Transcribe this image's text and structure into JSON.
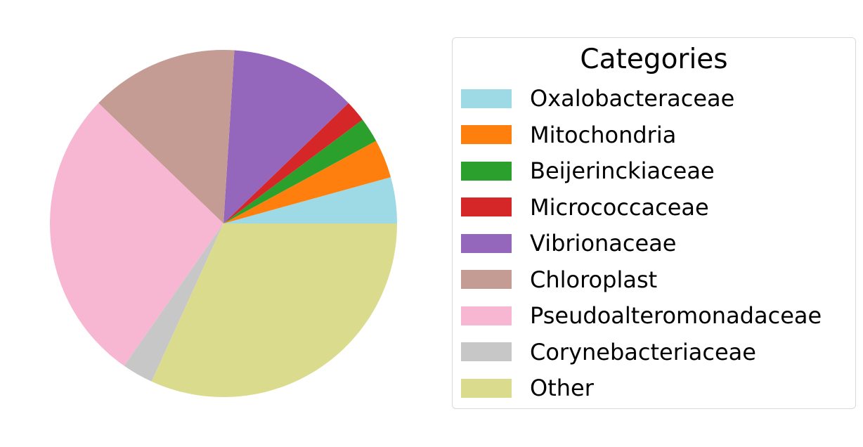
{
  "chart_data": {
    "type": "pie",
    "title": "",
    "start_angle_deg": 0,
    "direction": "counterclockwise",
    "slices": [
      {
        "label": "Oxalobacteraceae",
        "value": 4.3,
        "color": "#9edae5"
      },
      {
        "label": "Mitochondria",
        "value": 3.6,
        "color": "#ff7f0e"
      },
      {
        "label": "Beijerinckiaceae",
        "value": 2.3,
        "color": "#2ca02c"
      },
      {
        "label": "Micrococcaceae",
        "value": 2.0,
        "color": "#d62728"
      },
      {
        "label": "Vibrionaceae",
        "value": 11.8,
        "color": "#9467bd"
      },
      {
        "label": "Chloroplast",
        "value": 13.8,
        "color": "#c49c94"
      },
      {
        "label": "Pseudoalteromonadaceae",
        "value": 27.5,
        "color": "#f7b6d2"
      },
      {
        "label": "Corynebacteriaceae",
        "value": 2.9,
        "color": "#c7c7c7"
      },
      {
        "label": "Other",
        "value": 31.8,
        "color": "#dbdb8d"
      }
    ],
    "legend": {
      "title": "Categories",
      "placement": "right"
    }
  }
}
